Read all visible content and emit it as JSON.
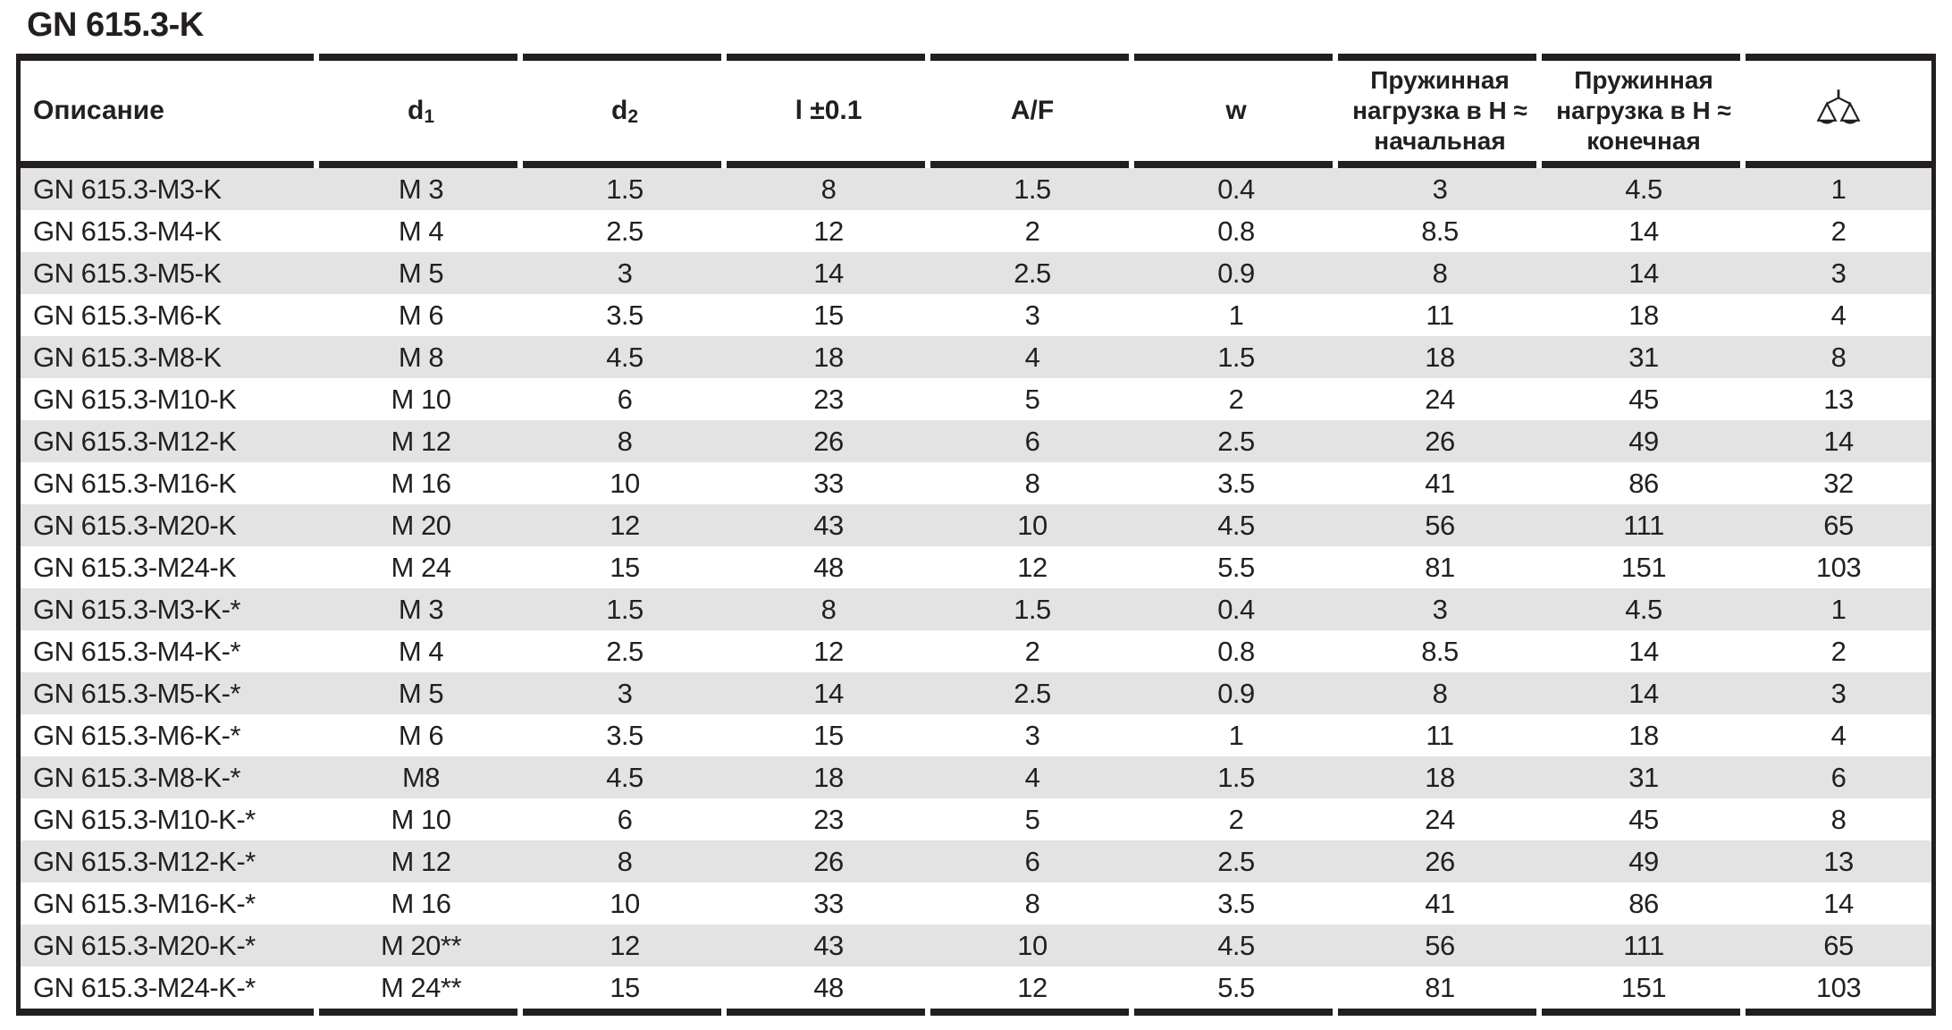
{
  "title": "GN 615.3-K",
  "colors": {
    "ink": "#231f20",
    "stripe": "#e3e3e4",
    "background": "#ffffff"
  },
  "table": {
    "headers": {
      "description": "Описание",
      "d1_base": "d",
      "d1_sub": "1",
      "d2_base": "d",
      "d2_sub": "2",
      "l": "l ±0.1",
      "af": "A/F",
      "w": "w",
      "spring_initial": "Пружинная\nнагрузка в Н ≈\nначальная",
      "spring_final": "Пружинная\nнагрузка в Н ≈\nконечная",
      "weight_icon": "scale-icon"
    },
    "rows": [
      [
        "GN 615.3-M3-K",
        "M 3",
        "1.5",
        "8",
        "1.5",
        "0.4",
        "3",
        "4.5",
        "1"
      ],
      [
        "GN 615.3-M4-K",
        "M 4",
        "2.5",
        "12",
        "2",
        "0.8",
        "8.5",
        "14",
        "2"
      ],
      [
        "GN 615.3-M5-K",
        "M 5",
        "3",
        "14",
        "2.5",
        "0.9",
        "8",
        "14",
        "3"
      ],
      [
        "GN 615.3-M6-K",
        "M 6",
        "3.5",
        "15",
        "3",
        "1",
        "11",
        "18",
        "4"
      ],
      [
        "GN 615.3-M8-K",
        "M 8",
        "4.5",
        "18",
        "4",
        "1.5",
        "18",
        "31",
        "8"
      ],
      [
        "GN 615.3-M10-K",
        "M 10",
        "6",
        "23",
        "5",
        "2",
        "24",
        "45",
        "13"
      ],
      [
        "GN 615.3-M12-K",
        "M 12",
        "8",
        "26",
        "6",
        "2.5",
        "26",
        "49",
        "14"
      ],
      [
        "GN 615.3-M16-K",
        "M 16",
        "10",
        "33",
        "8",
        "3.5",
        "41",
        "86",
        "32"
      ],
      [
        "GN 615.3-M20-K",
        "M 20",
        "12",
        "43",
        "10",
        "4.5",
        "56",
        "111",
        "65"
      ],
      [
        "GN 615.3-M24-K",
        "M 24",
        "15",
        "48",
        "12",
        "5.5",
        "81",
        "151",
        "103"
      ],
      [
        "GN 615.3-M3-K-*",
        "M 3",
        "1.5",
        "8",
        "1.5",
        "0.4",
        "3",
        "4.5",
        "1"
      ],
      [
        "GN 615.3-M4-K-*",
        "M 4",
        "2.5",
        "12",
        "2",
        "0.8",
        "8.5",
        "14",
        "2"
      ],
      [
        "GN 615.3-M5-K-*",
        "M 5",
        "3",
        "14",
        "2.5",
        "0.9",
        "8",
        "14",
        "3"
      ],
      [
        "GN 615.3-M6-K-*",
        "M 6",
        "3.5",
        "15",
        "3",
        "1",
        "11",
        "18",
        "4"
      ],
      [
        "GN 615.3-M8-K-*",
        "M8",
        "4.5",
        "18",
        "4",
        "1.5",
        "18",
        "31",
        "6"
      ],
      [
        "GN 615.3-M10-K-*",
        "M 10",
        "6",
        "23",
        "5",
        "2",
        "24",
        "45",
        "8"
      ],
      [
        "GN 615.3-M12-K-*",
        "M 12",
        "8",
        "26",
        "6",
        "2.5",
        "26",
        "49",
        "13"
      ],
      [
        "GN 615.3-M16-K-*",
        "M 16",
        "10",
        "33",
        "8",
        "3.5",
        "41",
        "86",
        "14"
      ],
      [
        "GN 615.3-M20-K-*",
        "M 20**",
        "12",
        "43",
        "10",
        "4.5",
        "56",
        "111",
        "65"
      ],
      [
        "GN 615.3-M24-K-*",
        "M 24**",
        "15",
        "48",
        "12",
        "5.5",
        "81",
        "151",
        "103"
      ]
    ]
  }
}
